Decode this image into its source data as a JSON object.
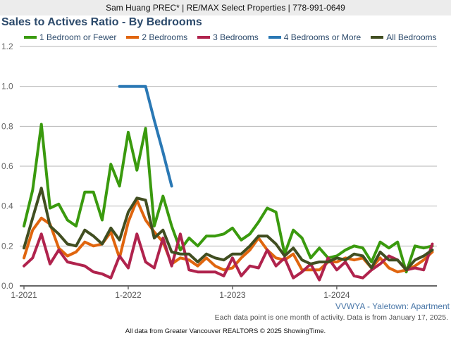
{
  "header": {
    "agent_line": "Sam Huang PREC* | RE/MAX Select Properties | 778-991-0649"
  },
  "footer": {
    "region": "VVWYA - Yaletown: Apartment",
    "note": "Each data point is one month of activity. Data is from January 17, 2025.",
    "source": "All data from Greater Vancouver REALTORS © 2025 ShowingTime."
  },
  "chart_data": {
    "type": "line",
    "title": "Sales to Actives Ratio - By Bedrooms",
    "xlabel": "",
    "ylabel": "",
    "ylim": [
      0,
      1.2
    ],
    "yticks": [
      "0.0",
      "0.2",
      "0.4",
      "0.6",
      "0.8",
      "1.0",
      "1.2"
    ],
    "ytick_values": [
      0,
      0.2,
      0.4,
      0.6,
      0.8,
      1.0,
      1.2
    ],
    "xticks": [
      "1-2021",
      "1-2022",
      "1-2023",
      "1-2024"
    ],
    "xtick_indices": [
      0,
      12,
      24,
      36
    ],
    "x_start": "2021-01",
    "x_end": "2024-12",
    "grid": true,
    "legend_position": "top",
    "x": [
      "2021-01",
      "2021-02",
      "2021-03",
      "2021-04",
      "2021-05",
      "2021-06",
      "2021-07",
      "2021-08",
      "2021-09",
      "2021-10",
      "2021-11",
      "2021-12",
      "2022-01",
      "2022-02",
      "2022-03",
      "2022-04",
      "2022-05",
      "2022-06",
      "2022-07",
      "2022-08",
      "2022-09",
      "2022-10",
      "2022-11",
      "2022-12",
      "2023-01",
      "2023-02",
      "2023-03",
      "2023-04",
      "2023-05",
      "2023-06",
      "2023-07",
      "2023-08",
      "2023-09",
      "2023-10",
      "2023-11",
      "2023-12",
      "2024-01",
      "2024-02",
      "2024-03",
      "2024-04",
      "2024-05",
      "2024-06",
      "2024-07",
      "2024-08",
      "2024-09",
      "2024-10",
      "2024-11",
      "2024-12"
    ],
    "series": [
      {
        "name": "1 Bedroom or Fewer",
        "color": "#3a9a0e",
        "values": [
          0.3,
          0.48,
          0.81,
          0.39,
          0.41,
          0.33,
          0.3,
          0.47,
          0.47,
          0.33,
          0.61,
          0.5,
          0.77,
          0.58,
          0.79,
          0.3,
          0.45,
          0.3,
          0.18,
          0.24,
          0.2,
          0.25,
          0.25,
          0.26,
          0.29,
          0.23,
          0.26,
          0.32,
          0.39,
          0.37,
          0.16,
          0.28,
          0.24,
          0.14,
          0.19,
          0.14,
          0.15,
          0.18,
          0.2,
          0.19,
          0.12,
          0.22,
          0.19,
          0.22,
          0.07,
          0.2,
          0.19,
          0.2
        ]
      },
      {
        "name": "2 Bedrooms",
        "color": "#e0650e",
        "values": [
          0.14,
          0.28,
          0.34,
          0.31,
          0.19,
          0.15,
          0.17,
          0.22,
          0.2,
          0.21,
          0.27,
          0.14,
          0.32,
          0.43,
          0.33,
          0.27,
          0.22,
          0.11,
          0.14,
          0.13,
          0.1,
          0.14,
          0.1,
          0.08,
          0.09,
          0.14,
          0.18,
          0.24,
          0.18,
          0.14,
          0.13,
          0.16,
          0.08,
          0.08,
          0.08,
          0.12,
          0.12,
          0.14,
          0.13,
          0.14,
          0.09,
          0.14,
          0.09,
          0.07,
          0.08,
          0.1,
          0.13,
          0.17
        ]
      },
      {
        "name": "3 Bedrooms",
        "color": "#b0234d",
        "values": [
          0.1,
          0.14,
          0.26,
          0.11,
          0.18,
          0.12,
          0.11,
          0.1,
          0.07,
          0.06,
          0.04,
          0.15,
          0.09,
          0.26,
          0.12,
          0.09,
          0.24,
          0.1,
          0.26,
          0.08,
          0.07,
          0.07,
          0.07,
          0.05,
          0.14,
          0.05,
          0.1,
          0.09,
          0.18,
          0.1,
          0.14,
          0.04,
          0.07,
          0.11,
          0.03,
          0.14,
          0.08,
          0.12,
          0.05,
          0.04,
          0.08,
          0.11,
          0.15,
          0.13,
          0.08,
          0.09,
          0.08,
          0.21
        ]
      },
      {
        "name": "4 Bedrooms or More",
        "color": "#2a78b4",
        "values": [
          null,
          null,
          null,
          null,
          null,
          null,
          null,
          null,
          null,
          null,
          null,
          1.0,
          1.0,
          1.0,
          1.0,
          0.83,
          0.67,
          0.5,
          null,
          null,
          null,
          null,
          null,
          null,
          null,
          null,
          null,
          null,
          null,
          null,
          null,
          null,
          null,
          null,
          null,
          null,
          null,
          null,
          null,
          null,
          null,
          null,
          null,
          null,
          null,
          null,
          null,
          null
        ]
      },
      {
        "name": "All Bedrooms",
        "color": "#414e21",
        "values": [
          0.19,
          0.34,
          0.49,
          0.3,
          0.26,
          0.21,
          0.2,
          0.28,
          0.25,
          0.21,
          0.29,
          0.23,
          0.37,
          0.44,
          0.43,
          0.24,
          0.28,
          0.17,
          0.16,
          0.16,
          0.12,
          0.16,
          0.14,
          0.13,
          0.16,
          0.16,
          0.2,
          0.25,
          0.25,
          0.21,
          0.15,
          0.19,
          0.13,
          0.11,
          0.12,
          0.12,
          0.14,
          0.13,
          0.16,
          0.15,
          0.09,
          0.17,
          0.13,
          0.13,
          0.08,
          0.13,
          0.15,
          0.18
        ]
      }
    ]
  }
}
